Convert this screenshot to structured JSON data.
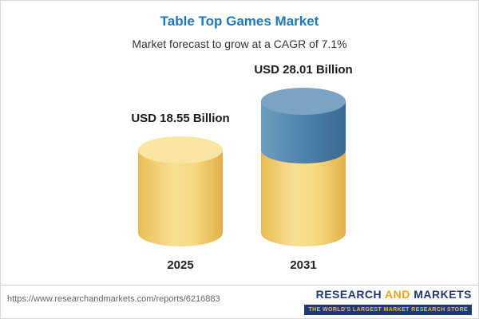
{
  "header": {
    "title": "Table Top Games Market",
    "subtitle": "Market forecast to grow at a CAGR of 7.1%"
  },
  "chart_data": {
    "type": "bar",
    "chart_style": "cylinder",
    "title": "Table Top Games Market",
    "subtitle": "Market forecast to grow at a CAGR of 7.1%",
    "cagr": "7.1%",
    "unit": "USD Billion",
    "categories": [
      "2025",
      "2031"
    ],
    "values": [
      18.55,
      28.01
    ],
    "value_labels": [
      "USD 18.55 Billion",
      "USD 28.01 Billion"
    ],
    "ylim": [
      0,
      30
    ],
    "legend_position": "none",
    "grid": false,
    "colors": {
      "bar_base": "#F5D87E",
      "bar_growth_top": "#4C80AA",
      "title": "#1F78B9"
    },
    "notes": "2031 bar shows base value in yellow with growth segment (28.01 - 18.55 = 9.46) in blue on top"
  },
  "footer": {
    "url": "https://www.researchandmarkets.com/reports/6216883",
    "brand": {
      "word1": "RESEARCH",
      "word2": "AND",
      "word3": "MARKETS",
      "tagline": "THE WORLD'S LARGEST MARKET RESEARCH STORE"
    }
  }
}
